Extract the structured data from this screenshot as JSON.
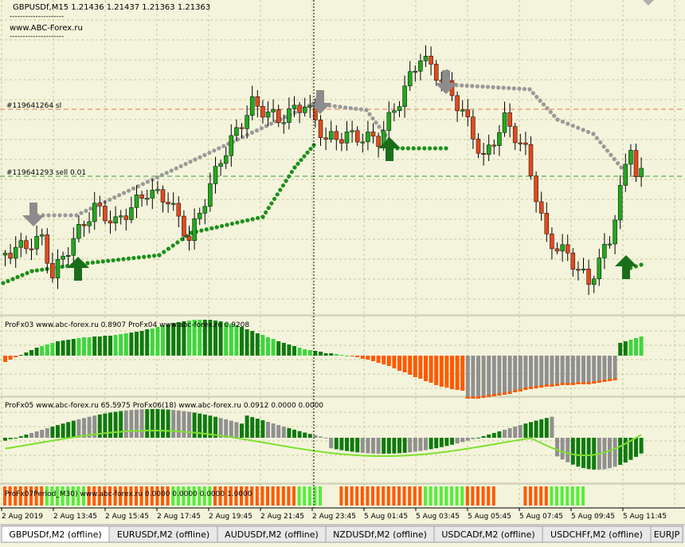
{
  "window": {
    "symbol_line": "GBPUSDf,M15  1.21436 1.21437 1.21363 1.21363",
    "watermark": "www.ABC-Forex.ru",
    "divider_text": "---------------------"
  },
  "colors": {
    "background": "#f4f4dc",
    "grid": "#c8c8a0",
    "bull": "#22a81f",
    "bear": "#e24a1e",
    "stop_line": "#e0784a",
    "entry_line": "#2e9a2e",
    "arrow_up": "#1a6e1a",
    "arrow_down": "#8c8c8c",
    "trail_green": "#1d8f1d",
    "trail_gray": "#9a9a9a",
    "osc_bright": "#3ed63e",
    "osc_dark": "#0f7a0f",
    "osc_orange": "#ff5a00",
    "osc_gray": "#909090",
    "signal_line": "#7fe030"
  },
  "main_chart": {
    "sl_label": "#119641264 sl",
    "sell_label": "#119641293 sell 0.01"
  },
  "indicators": {
    "panel1_label": "ProFx03 www.abc-forex.ru 0.8907  ProFx04 www.abc-forex.ru 0.9208",
    "panel2_label": "ProFx05 www.abc-forex.ru 65.5975  ProFx06(18) www.abc-forex.ru 0.0912  0.0000  0.0000",
    "panel3_label": "ProFx07Period_M30) www.abc-forex.ru 0.0000 0.0000 0.0000 1.0000"
  },
  "time_axis": [
    "2 Aug 2019",
    "2 Aug 13:45",
    "2 Aug 15:45",
    "2 Aug 17:45",
    "2 Aug 19:45",
    "2 Aug 21:45",
    "2 Aug 23:45",
    "5 Aug 01:45",
    "5 Aug 03:45",
    "5 Aug 05:45",
    "5 Aug 07:45",
    "5 Aug 09:45",
    "5 Aug 11:45"
  ],
  "tabs": [
    {
      "label": "GBPUSDf,M2 (offline)",
      "active": true
    },
    {
      "label": "EURUSDf,M2 (offline)",
      "active": false
    },
    {
      "label": "AUDUSDf,M2 (offline)",
      "active": false
    },
    {
      "label": "NZDUSDf,M2 (offline)",
      "active": false
    },
    {
      "label": "USDCADf,M2 (offline)",
      "active": false
    },
    {
      "label": "USDCHFf,M2 (offline)",
      "active": false
    },
    {
      "label": "EURJP",
      "active": false
    }
  ]
}
